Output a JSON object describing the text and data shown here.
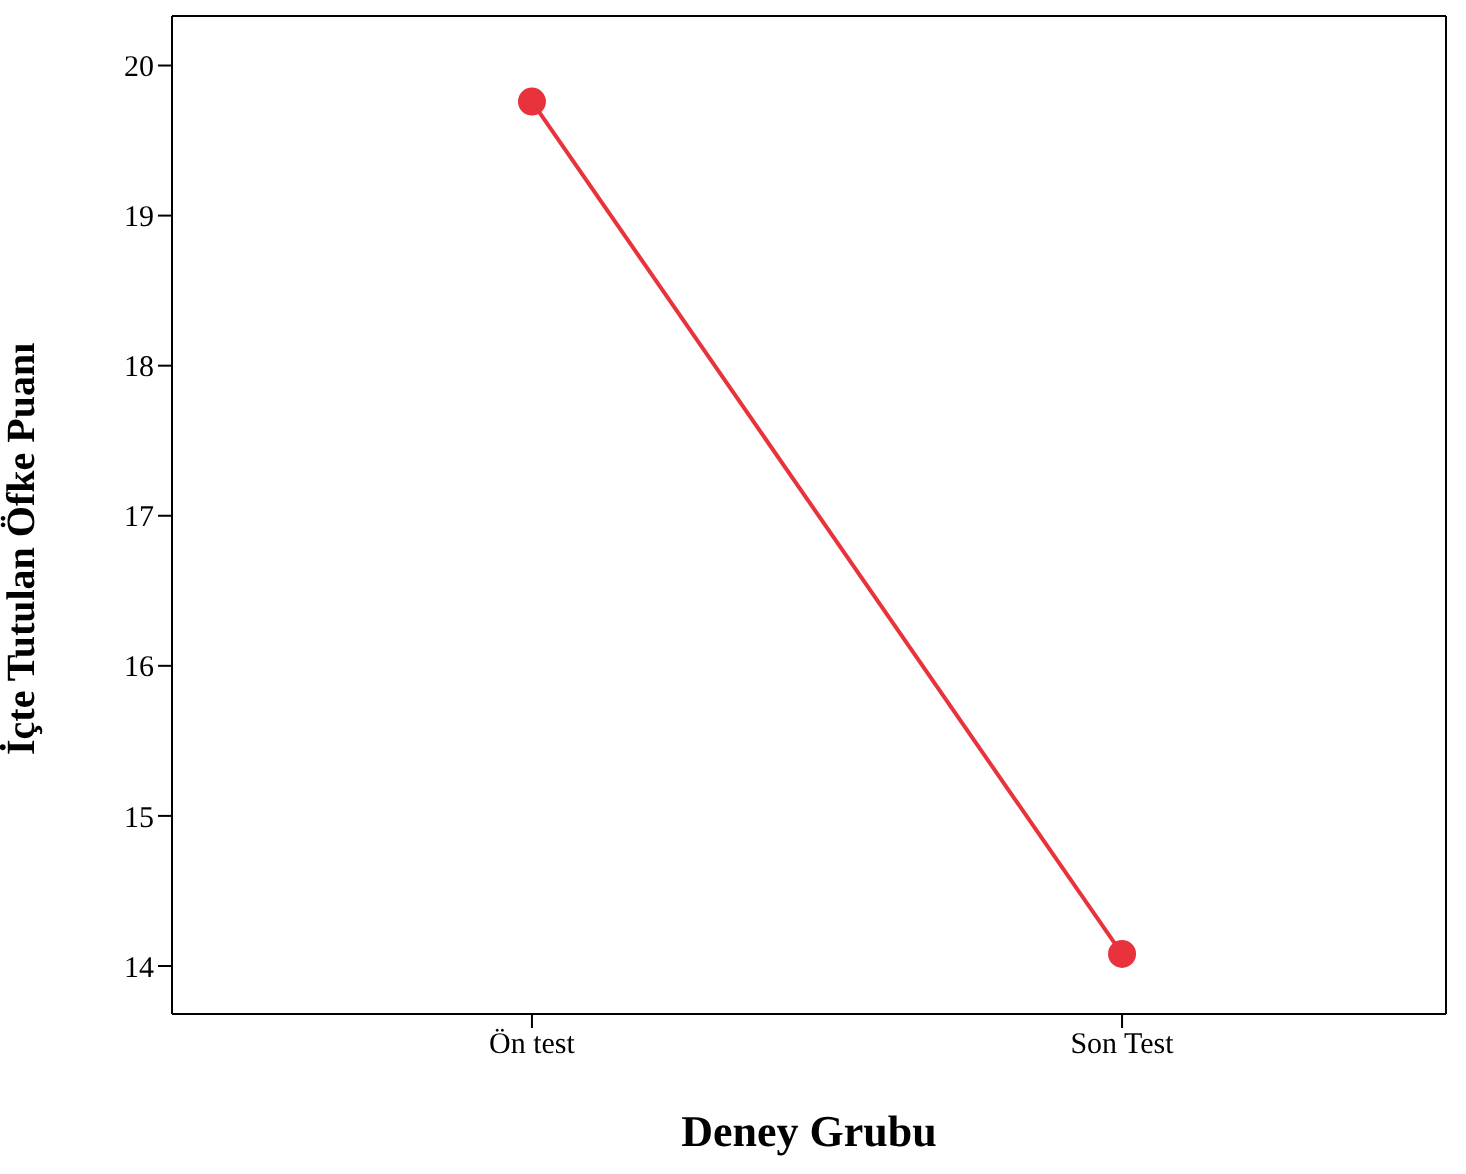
{
  "chart_data": {
    "type": "line",
    "xlabel": "Deney Grubu",
    "ylabel": "İçte Tutulan Öfke Puanı",
    "categories": [
      "Ön test",
      "Son Test"
    ],
    "series": [
      {
        "color": "#e8323c",
        "values": [
          19.76,
          14.08
        ]
      }
    ],
    "ylim": [
      13.68,
      20.33
    ],
    "yticks": [
      14,
      15,
      16,
      17,
      18,
      19,
      20
    ],
    "grid": false,
    "legend": false,
    "marker": "circle",
    "line_style": "solid"
  }
}
